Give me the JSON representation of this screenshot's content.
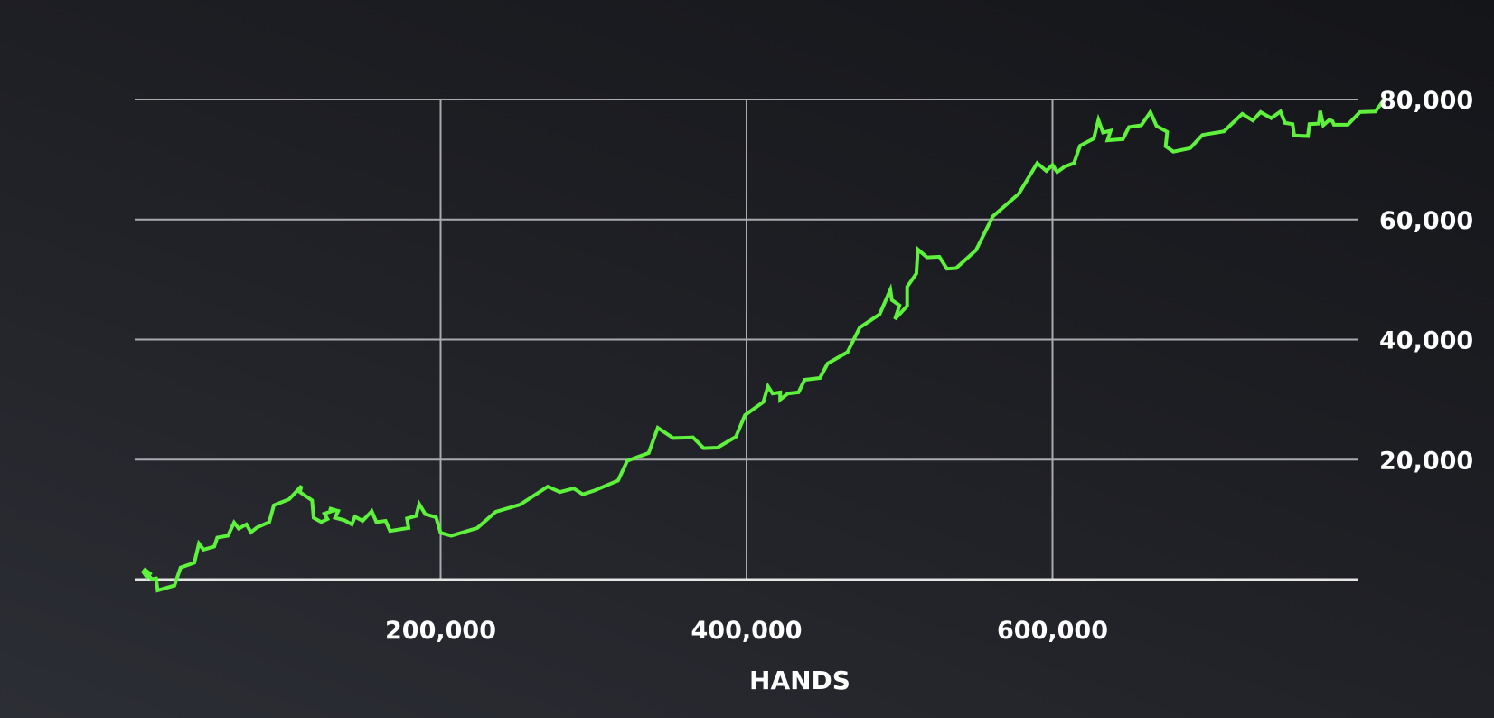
{
  "chart_data": {
    "type": "line",
    "title": "",
    "xlabel": "HANDS",
    "ylabel": "",
    "xlim": [
      0,
      800000
    ],
    "ylim": [
      0,
      80000
    ],
    "x_ticks": [
      200000,
      400000,
      600000
    ],
    "x_tick_labels": [
      "200,000",
      "400,000",
      "600,000"
    ],
    "y_ticks": [
      20000,
      40000,
      60000,
      80000
    ],
    "y_tick_labels": [
      "20,000",
      "40,000",
      "60,000",
      "80,000"
    ],
    "y_axis_side": "right",
    "grid": true,
    "legend": "none",
    "colors": {
      "series": "#5ef23c",
      "grid": "#a9aaae",
      "baseline": "#e6e6e6",
      "text": "#ffffff"
    },
    "series": [
      {
        "points": [
          [
            5000,
            1500
          ],
          [
            8000,
            400
          ],
          [
            10000,
            1000
          ],
          [
            6000,
            1800
          ],
          [
            11000,
            100
          ],
          [
            14000,
            200
          ],
          [
            15000,
            -1800
          ],
          [
            26000,
            -1000
          ],
          [
            30000,
            2000
          ],
          [
            39000,
            2800
          ],
          [
            42000,
            6000
          ],
          [
            45000,
            5000
          ],
          [
            52000,
            5500
          ],
          [
            54000,
            7000
          ],
          [
            61000,
            7300
          ],
          [
            65000,
            9500
          ],
          [
            68000,
            8500
          ],
          [
            73000,
            9200
          ],
          [
            76000,
            7900
          ],
          [
            80000,
            8700
          ],
          [
            88000,
            9600
          ],
          [
            91000,
            12400
          ],
          [
            101000,
            13400
          ],
          [
            109000,
            15600
          ],
          [
            108000,
            14600
          ],
          [
            116000,
            13200
          ],
          [
            117000,
            10300
          ],
          [
            122000,
            9600
          ],
          [
            126000,
            10100
          ],
          [
            124000,
            11000
          ],
          [
            131000,
            11600
          ],
          [
            127000,
            11900
          ],
          [
            133000,
            11400
          ],
          [
            131000,
            10300
          ],
          [
            137000,
            9900
          ],
          [
            142000,
            9200
          ],
          [
            144000,
            10500
          ],
          [
            149000,
            9800
          ],
          [
            155000,
            11400
          ],
          [
            158000,
            9600
          ],
          [
            164000,
            9800
          ],
          [
            167000,
            8100
          ],
          [
            179000,
            8600
          ],
          [
            178000,
            10200
          ],
          [
            184000,
            10600
          ],
          [
            186000,
            12600
          ],
          [
            190000,
            10900
          ],
          [
            197000,
            10400
          ],
          [
            200000,
            7800
          ],
          [
            207000,
            7300
          ],
          [
            224000,
            8600
          ],
          [
            236000,
            11300
          ],
          [
            252000,
            12500
          ],
          [
            270000,
            15500
          ],
          [
            278000,
            14600
          ],
          [
            287000,
            15200
          ],
          [
            293000,
            14200
          ],
          [
            300000,
            14800
          ],
          [
            316000,
            16500
          ],
          [
            322000,
            19800
          ],
          [
            336000,
            21100
          ],
          [
            342000,
            25300
          ],
          [
            352000,
            23600
          ],
          [
            365000,
            23700
          ],
          [
            372000,
            21900
          ],
          [
            381000,
            22000
          ],
          [
            393000,
            23800
          ],
          [
            399000,
            27400
          ],
          [
            411000,
            29600
          ],
          [
            414000,
            32200
          ],
          [
            417000,
            31000
          ],
          [
            422000,
            31200
          ],
          [
            422000,
            30000
          ],
          [
            427000,
            31000
          ],
          [
            434000,
            31200
          ],
          [
            438000,
            33300
          ],
          [
            448000,
            33600
          ],
          [
            453000,
            36000
          ],
          [
            466000,
            37900
          ],
          [
            474000,
            42000
          ],
          [
            487000,
            44200
          ],
          [
            494000,
            48300
          ],
          [
            495000,
            46600
          ],
          [
            500000,
            45700
          ],
          [
            497000,
            43400
          ],
          [
            505000,
            45600
          ],
          [
            505000,
            48800
          ],
          [
            511000,
            51000
          ],
          [
            512000,
            55000
          ],
          [
            518000,
            53700
          ],
          [
            526000,
            53800
          ],
          [
            531000,
            51800
          ],
          [
            537000,
            51900
          ],
          [
            550000,
            54900
          ],
          [
            561000,
            60500
          ],
          [
            578000,
            64300
          ],
          [
            590000,
            69400
          ],
          [
            596000,
            68100
          ],
          [
            600000,
            69100
          ],
          [
            603000,
            67900
          ],
          [
            608000,
            68800
          ],
          [
            614000,
            69400
          ],
          [
            618000,
            72300
          ],
          [
            627000,
            73500
          ],
          [
            630000,
            76600
          ],
          [
            633000,
            74500
          ],
          [
            638000,
            74800
          ],
          [
            636000,
            73200
          ],
          [
            646000,
            73400
          ],
          [
            650000,
            75400
          ],
          [
            658000,
            75700
          ],
          [
            664000,
            77900
          ],
          [
            668000,
            75600
          ],
          [
            675000,
            74600
          ],
          [
            674000,
            72200
          ],
          [
            679000,
            71300
          ],
          [
            690000,
            71900
          ],
          [
            698000,
            74100
          ],
          [
            712000,
            74700
          ],
          [
            724000,
            77600
          ],
          [
            731000,
            76500
          ],
          [
            736000,
            77900
          ],
          [
            743000,
            76900
          ],
          [
            749000,
            78000
          ],
          [
            752000,
            76100
          ],
          [
            757000,
            75900
          ],
          [
            758000,
            74000
          ],
          [
            767000,
            73900
          ],
          [
            768000,
            75900
          ],
          [
            774000,
            76000
          ],
          [
            775000,
            78100
          ],
          [
            777000,
            75700
          ],
          [
            781000,
            76600
          ],
          [
            783000,
            76400
          ],
          [
            784000,
            75800
          ],
          [
            793000,
            75800
          ],
          [
            801000,
            77900
          ],
          [
            811000,
            78000
          ],
          [
            818000,
            80400
          ]
        ]
      }
    ]
  }
}
